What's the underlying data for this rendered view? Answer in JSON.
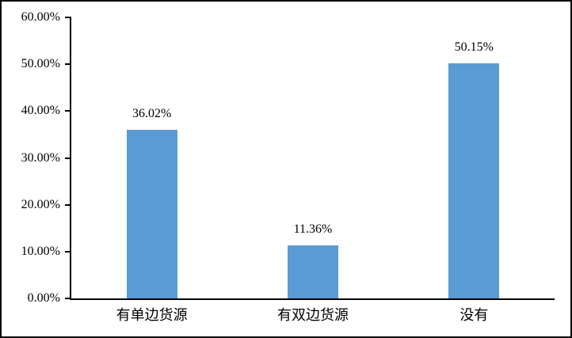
{
  "chart_data": {
    "type": "bar",
    "title": "",
    "xlabel": "",
    "ylabel": "",
    "categories": [
      "有单边货源",
      "有双边货源",
      "没有"
    ],
    "values": [
      36.02,
      11.36,
      50.15
    ],
    "value_labels": [
      "36.02%",
      "11.36%",
      "50.15%"
    ],
    "ylim": [
      0,
      60
    ],
    "y_tick_values": [
      60,
      50,
      40,
      30,
      20,
      10,
      0
    ],
    "y_tick_labels": [
      "60.00%",
      "50.00%",
      "40.00%",
      "30.00%",
      "20.00%",
      "10.00%",
      "0.00%"
    ],
    "grid": false,
    "legend": "none",
    "bar_color": "#5B9BD5",
    "axis_color": "#000000",
    "text_color": "#000000",
    "frame_border_color": "#000000"
  }
}
